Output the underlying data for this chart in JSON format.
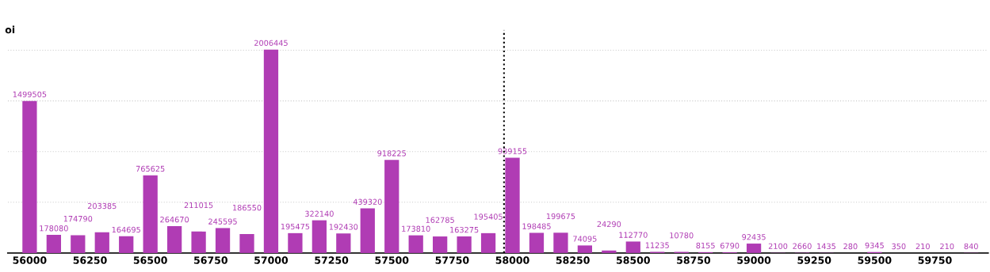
{
  "chart_data": {
    "type": "bar",
    "ylabel": "oi",
    "color": "#b03cb4",
    "x": [
      56000,
      56100,
      56200,
      56300,
      56400,
      56500,
      56600,
      56700,
      56800,
      56900,
      57000,
      57100,
      57200,
      57300,
      57400,
      57500,
      57600,
      57700,
      57800,
      57900,
      58000,
      58100,
      58200,
      58300,
      58400,
      58500,
      58600,
      58700,
      58800,
      58900,
      59000,
      59100,
      59200,
      59300,
      59400,
      59500,
      59600,
      59700,
      59800,
      59900
    ],
    "values": [
      1499505,
      178080,
      174790,
      203385,
      164695,
      765625,
      264670,
      211015,
      245595,
      186550,
      2006445,
      195475,
      322140,
      192430,
      439320,
      918225,
      173810,
      162785,
      163275,
      195405,
      939155,
      198485,
      199675,
      74095,
      24290,
      112770,
      11235,
      10780,
      8155,
      6790,
      92435,
      2100,
      2660,
      1435,
      280,
      9345,
      350,
      210,
      210,
      840
    ],
    "data_labels": true,
    "xlim": [
      55910,
      59970
    ],
    "xticks": [
      56000,
      56250,
      56500,
      56750,
      57000,
      57250,
      57500,
      57750,
      58000,
      58250,
      58500,
      58750,
      59000,
      59250,
      59500,
      59750
    ],
    "ylim": [
      0,
      2200000
    ],
    "yticks": [
      {
        "value": 0,
        "label": null
      },
      {
        "value": 500000,
        "label": null
      },
      {
        "value": 1000000,
        "label": null
      },
      {
        "value": 1500000,
        "label": null
      },
      {
        "value": 2000000,
        "label": null
      }
    ],
    "grid": "y",
    "ref_lines": [
      {
        "axis": "x",
        "value": 57965,
        "label": null,
        "color": "#000000",
        "line_style": "dotted"
      }
    ]
  }
}
